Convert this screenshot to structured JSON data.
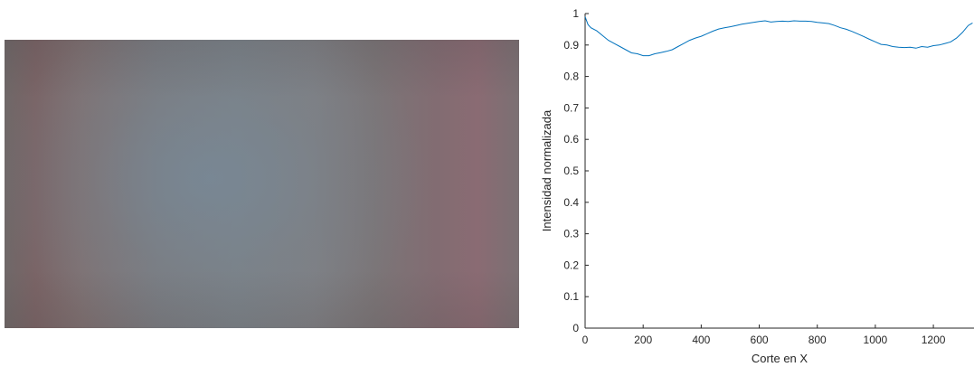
{
  "photo": {
    "description_icon": "camera-image"
  },
  "chart_data": {
    "type": "line",
    "title": "",
    "xlabel": "Corte en X",
    "ylabel": "Intensidad normalizada",
    "xlim": [
      0,
      1340
    ],
    "ylim": [
      0,
      1
    ],
    "xticks": [
      0,
      200,
      400,
      600,
      800,
      1000,
      1200
    ],
    "yticks": [
      0,
      0.1,
      0.2,
      0.3,
      0.4,
      0.5,
      0.6,
      0.7,
      0.8,
      0.9,
      1
    ],
    "ytick_labels": [
      "0",
      "0.1",
      "0.2",
      "0.3",
      "0.4",
      "0.5",
      "0.6",
      "0.7",
      "0.8",
      "0.9",
      "1"
    ],
    "line_color": "#0072BD",
    "grid": false,
    "series": [
      {
        "x": [
          0,
          10,
          20,
          40,
          60,
          80,
          100,
          120,
          140,
          160,
          180,
          200,
          220,
          240,
          260,
          280,
          300,
          320,
          340,
          360,
          380,
          400,
          420,
          440,
          460,
          480,
          500,
          520,
          540,
          560,
          580,
          600,
          620,
          640,
          660,
          680,
          700,
          720,
          740,
          760,
          780,
          800,
          820,
          840,
          860,
          880,
          900,
          920,
          940,
          960,
          980,
          1000,
          1020,
          1040,
          1060,
          1080,
          1100,
          1120,
          1140,
          1160,
          1180,
          1200,
          1220,
          1240,
          1260,
          1280,
          1300,
          1320,
          1335
        ],
        "y": [
          0.99,
          0.965,
          0.955,
          0.945,
          0.93,
          0.915,
          0.905,
          0.895,
          0.885,
          0.875,
          0.872,
          0.866,
          0.866,
          0.872,
          0.876,
          0.88,
          0.885,
          0.895,
          0.905,
          0.915,
          0.922,
          0.928,
          0.936,
          0.944,
          0.951,
          0.955,
          0.958,
          0.962,
          0.966,
          0.969,
          0.972,
          0.975,
          0.977,
          0.973,
          0.975,
          0.976,
          0.975,
          0.977,
          0.976,
          0.976,
          0.975,
          0.972,
          0.97,
          0.968,
          0.962,
          0.955,
          0.95,
          0.943,
          0.935,
          0.927,
          0.918,
          0.91,
          0.902,
          0.9,
          0.895,
          0.893,
          0.892,
          0.893,
          0.89,
          0.895,
          0.893,
          0.898,
          0.9,
          0.905,
          0.91,
          0.922,
          0.94,
          0.962,
          0.97
        ]
      }
    ]
  }
}
